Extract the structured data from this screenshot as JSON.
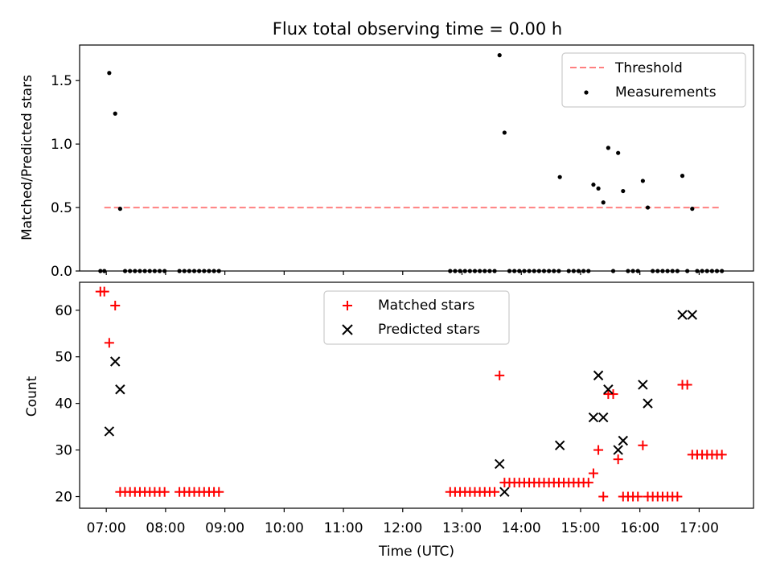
{
  "title": "Flux total observing time = 0.00 h",
  "chart_data": [
    {
      "type": "scatter",
      "title": "Flux total observing time = 0.00 h",
      "ylabel": "Matched/Predicted stars",
      "xlabel": "",
      "xlim": [
        "06:33",
        "17:55"
      ],
      "ylim": [
        0,
        1.78
      ],
      "yticks": [
        "0.0",
        "0.5",
        "1.0",
        "1.5"
      ],
      "ytick_values": [
        0,
        0.5,
        1.0,
        1.5
      ],
      "legend_position": "upper right",
      "series": [
        {
          "name": "Threshold",
          "kind": "line",
          "style": "dashed",
          "color": "#ff8080",
          "x": [
            "06:58",
            "17:22"
          ],
          "y": [
            0.5,
            0.5
          ]
        },
        {
          "name": "Measurements",
          "kind": "points",
          "color": "#000000",
          "points": [
            [
              "06:54",
              0
            ],
            [
              "06:58",
              0
            ],
            [
              "07:03",
              1.56
            ],
            [
              "07:09",
              1.24
            ],
            [
              "07:14",
              0.49
            ],
            [
              "07:19",
              0
            ],
            [
              "07:24",
              0
            ],
            [
              "07:29",
              0
            ],
            [
              "07:34",
              0
            ],
            [
              "07:39",
              0
            ],
            [
              "07:44",
              0
            ],
            [
              "07:49",
              0
            ],
            [
              "07:54",
              0
            ],
            [
              "07:59",
              0
            ],
            [
              "08:14",
              0
            ],
            [
              "08:19",
              0
            ],
            [
              "08:24",
              0
            ],
            [
              "08:29",
              0
            ],
            [
              "08:34",
              0
            ],
            [
              "08:39",
              0
            ],
            [
              "08:44",
              0
            ],
            [
              "08:49",
              0
            ],
            [
              "08:54",
              0
            ],
            [
              "12:48",
              0
            ],
            [
              "12:53",
              0
            ],
            [
              "12:58",
              0
            ],
            [
              "13:03",
              0
            ],
            [
              "13:08",
              0
            ],
            [
              "13:13",
              0
            ],
            [
              "13:18",
              0
            ],
            [
              "13:23",
              0
            ],
            [
              "13:28",
              0
            ],
            [
              "13:33",
              0
            ],
            [
              "13:38",
              1.7
            ],
            [
              "13:43",
              1.09
            ],
            [
              "13:48",
              0
            ],
            [
              "13:53",
              0
            ],
            [
              "13:58",
              0
            ],
            [
              "14:03",
              0
            ],
            [
              "14:08",
              0
            ],
            [
              "14:13",
              0
            ],
            [
              "14:18",
              0
            ],
            [
              "14:23",
              0
            ],
            [
              "14:28",
              0
            ],
            [
              "14:33",
              0
            ],
            [
              "14:38",
              0
            ],
            [
              "14:39",
              0.74
            ],
            [
              "14:48",
              0
            ],
            [
              "14:53",
              0
            ],
            [
              "14:58",
              0
            ],
            [
              "15:03",
              0
            ],
            [
              "15:08",
              0
            ],
            [
              "15:13",
              0.68
            ],
            [
              "15:18",
              0.65
            ],
            [
              "15:23",
              0.54
            ],
            [
              "15:28",
              0.97
            ],
            [
              "15:33",
              0
            ],
            [
              "15:38",
              0.93
            ],
            [
              "15:43",
              0.63
            ],
            [
              "15:48",
              0
            ],
            [
              "15:53",
              0
            ],
            [
              "15:58",
              0
            ],
            [
              "16:03",
              0.71
            ],
            [
              "16:08",
              0.5
            ],
            [
              "16:13",
              0
            ],
            [
              "16:18",
              0
            ],
            [
              "16:23",
              0
            ],
            [
              "16:28",
              0
            ],
            [
              "16:33",
              0
            ],
            [
              "16:38",
              0
            ],
            [
              "16:43",
              0.75
            ],
            [
              "16:48",
              0
            ],
            [
              "16:53",
              0.49
            ],
            [
              "16:58",
              0
            ],
            [
              "17:03",
              0
            ],
            [
              "17:08",
              0
            ],
            [
              "17:13",
              0
            ],
            [
              "17:18",
              0
            ],
            [
              "17:23",
              0
            ]
          ]
        }
      ]
    },
    {
      "type": "scatter",
      "title": "",
      "xlabel": "Time (UTC)",
      "ylabel": "Count",
      "xlim": [
        "06:33",
        "17:55"
      ],
      "ylim": [
        17.5,
        66
      ],
      "xticks": [
        "07:00",
        "08:00",
        "09:00",
        "10:00",
        "11:00",
        "12:00",
        "13:00",
        "14:00",
        "15:00",
        "16:00",
        "17:00"
      ],
      "yticks": [
        "20",
        "30",
        "40",
        "50",
        "60"
      ],
      "ytick_values": [
        20,
        30,
        40,
        50,
        60
      ],
      "legend_position": "upper center",
      "series": [
        {
          "name": "Matched stars",
          "marker": "plus",
          "color": "#ff0000",
          "points": [
            [
              "06:54",
              64
            ],
            [
              "06:58",
              64
            ],
            [
              "07:03",
              53
            ],
            [
              "07:09",
              61
            ],
            [
              "07:14",
              21
            ],
            [
              "07:19",
              21
            ],
            [
              "07:24",
              21
            ],
            [
              "07:29",
              21
            ],
            [
              "07:34",
              21
            ],
            [
              "07:39",
              21
            ],
            [
              "07:44",
              21
            ],
            [
              "07:49",
              21
            ],
            [
              "07:54",
              21
            ],
            [
              "07:59",
              21
            ],
            [
              "08:14",
              21
            ],
            [
              "08:19",
              21
            ],
            [
              "08:24",
              21
            ],
            [
              "08:29",
              21
            ],
            [
              "08:34",
              21
            ],
            [
              "08:39",
              21
            ],
            [
              "08:44",
              21
            ],
            [
              "08:49",
              21
            ],
            [
              "08:54",
              21
            ],
            [
              "12:48",
              21
            ],
            [
              "12:53",
              21
            ],
            [
              "12:58",
              21
            ],
            [
              "13:03",
              21
            ],
            [
              "13:08",
              21
            ],
            [
              "13:13",
              21
            ],
            [
              "13:18",
              21
            ],
            [
              "13:23",
              21
            ],
            [
              "13:28",
              21
            ],
            [
              "13:33",
              21
            ],
            [
              "13:38",
              46
            ],
            [
              "13:43",
              23
            ],
            [
              "13:48",
              23
            ],
            [
              "13:53",
              23
            ],
            [
              "13:58",
              23
            ],
            [
              "14:03",
              23
            ],
            [
              "14:08",
              23
            ],
            [
              "14:13",
              23
            ],
            [
              "14:18",
              23
            ],
            [
              "14:23",
              23
            ],
            [
              "14:28",
              23
            ],
            [
              "14:33",
              23
            ],
            [
              "14:38",
              23
            ],
            [
              "14:43",
              23
            ],
            [
              "14:48",
              23
            ],
            [
              "14:53",
              23
            ],
            [
              "14:58",
              23
            ],
            [
              "15:03",
              23
            ],
            [
              "15:08",
              23
            ],
            [
              "15:13",
              25
            ],
            [
              "15:18",
              30
            ],
            [
              "15:23",
              20
            ],
            [
              "15:28",
              42
            ],
            [
              "15:33",
              42
            ],
            [
              "15:38",
              28
            ],
            [
              "15:43",
              20
            ],
            [
              "15:48",
              20
            ],
            [
              "15:53",
              20
            ],
            [
              "15:58",
              20
            ],
            [
              "16:03",
              31
            ],
            [
              "16:08",
              20
            ],
            [
              "16:13",
              20
            ],
            [
              "16:18",
              20
            ],
            [
              "16:23",
              20
            ],
            [
              "16:28",
              20
            ],
            [
              "16:33",
              20
            ],
            [
              "16:38",
              20
            ],
            [
              "16:43",
              44
            ],
            [
              "16:48",
              44
            ],
            [
              "16:53",
              29
            ],
            [
              "16:58",
              29
            ],
            [
              "17:03",
              29
            ],
            [
              "17:08",
              29
            ],
            [
              "17:13",
              29
            ],
            [
              "17:18",
              29
            ],
            [
              "17:23",
              29
            ]
          ]
        },
        {
          "name": "Predicted stars",
          "marker": "x",
          "color": "#000000",
          "points": [
            [
              "07:03",
              34
            ],
            [
              "07:09",
              49
            ],
            [
              "07:14",
              43
            ],
            [
              "13:38",
              27
            ],
            [
              "13:43",
              21
            ],
            [
              "14:39",
              31
            ],
            [
              "15:13",
              37
            ],
            [
              "15:18",
              46
            ],
            [
              "15:23",
              37
            ],
            [
              "15:28",
              43
            ],
            [
              "15:38",
              30
            ],
            [
              "15:43",
              32
            ],
            [
              "16:03",
              44
            ],
            [
              "16:08",
              40
            ],
            [
              "16:43",
              59
            ],
            [
              "16:53",
              59
            ]
          ]
        }
      ]
    }
  ]
}
